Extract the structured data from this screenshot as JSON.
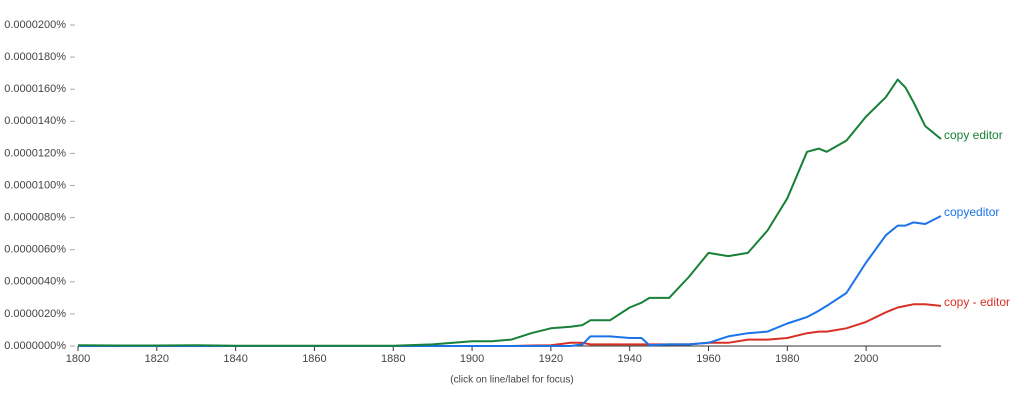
{
  "chart_data": {
    "type": "line",
    "note": "(click on line/label for focus)",
    "x": [
      1800,
      1810,
      1820,
      1830,
      1840,
      1850,
      1860,
      1870,
      1880,
      1890,
      1900,
      1905,
      1910,
      1915,
      1920,
      1925,
      1928,
      1930,
      1935,
      1940,
      1943,
      1945,
      1950,
      1955,
      1960,
      1965,
      1970,
      1975,
      1980,
      1985,
      1988,
      1990,
      1995,
      2000,
      2005,
      2008,
      2010,
      2012,
      2015,
      2019
    ],
    "series": [
      {
        "name": "copy editor",
        "color": "#188038",
        "values": [
          5e-08,
          3e-08,
          3e-08,
          5e-08,
          2e-08,
          2e-08,
          2e-08,
          2e-08,
          2e-08,
          1e-07,
          3e-07,
          3e-07,
          4e-07,
          8e-07,
          1.1e-06,
          1.2e-06,
          1.3e-06,
          1.6e-06,
          1.6e-06,
          2.4e-06,
          2.7e-06,
          3e-06,
          3e-06,
          4.3e-06,
          5.8e-06,
          5.6e-06,
          5.8e-06,
          7.2e-06,
          9.2e-06,
          1.21e-05,
          1.23e-05,
          1.21e-05,
          1.28e-05,
          1.43e-05,
          1.55e-05,
          1.66e-05,
          1.61e-05,
          1.52e-05,
          1.37e-05,
          1.29e-05
        ]
      },
      {
        "name": "copyeditor",
        "color": "#1a73e8",
        "values": [
          0,
          0,
          0,
          0,
          0,
          0,
          0,
          0,
          0,
          0,
          0,
          0,
          0,
          0,
          0,
          0,
          1e-07,
          6e-07,
          6e-07,
          5e-07,
          5e-07,
          5e-08,
          1e-07,
          1e-07,
          2e-07,
          6e-07,
          8e-07,
          9e-07,
          1.4e-06,
          1.8e-06,
          2.2e-06,
          2.5e-06,
          3.3e-06,
          5.2e-06,
          6.9e-06,
          7.5e-06,
          7.5e-06,
          7.7e-06,
          7.6e-06,
          8.1e-06
        ]
      },
      {
        "name": "copy - editor",
        "color": "#d93025",
        "values": [
          0,
          0,
          0,
          0,
          0,
          0,
          0,
          0,
          0,
          0,
          0,
          0,
          0,
          3e-08,
          5e-08,
          2e-07,
          2e-07,
          1e-07,
          1e-07,
          1e-07,
          1e-07,
          1e-07,
          1e-07,
          1e-07,
          2e-07,
          2e-07,
          4e-07,
          4e-07,
          5e-07,
          8e-07,
          9e-07,
          9e-07,
          1.1e-06,
          1.5e-06,
          2.1e-06,
          2.4e-06,
          2.5e-06,
          2.6e-06,
          2.6e-06,
          2.5e-06
        ]
      }
    ],
    "xlim": [
      1800,
      2019
    ],
    "xticks": [
      1800,
      1820,
      1840,
      1860,
      1880,
      1900,
      1920,
      1940,
      1960,
      1980,
      2000
    ],
    "ylim": [
      0,
      2e-05
    ],
    "yticks": [
      {
        "value": 0,
        "label": "0.0000000%"
      },
      {
        "value": 2e-06,
        "label": "0.0000020%"
      },
      {
        "value": 4e-06,
        "label": "0.0000040%"
      },
      {
        "value": 6e-06,
        "label": "0.0000060%"
      },
      {
        "value": 8e-06,
        "label": "0.0000080%"
      },
      {
        "value": 1e-05,
        "label": "0.0000100%"
      },
      {
        "value": 1.2e-05,
        "label": "0.0000120%"
      },
      {
        "value": 1.4e-05,
        "label": "0.0000140%"
      },
      {
        "value": 1.6e-05,
        "label": "0.0000160%"
      },
      {
        "value": 1.8e-05,
        "label": "0.0000180%"
      },
      {
        "value": 2e-05,
        "label": "0.0000200%"
      }
    ],
    "grid": false
  }
}
